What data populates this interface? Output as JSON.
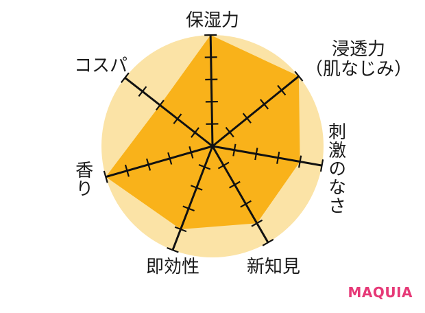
{
  "chart_data": {
    "type": "radar",
    "axes": [
      "保湿力",
      "浸透力\n（肌なじみ）",
      "刺激のなさ",
      "新知見",
      "即効性",
      "香り",
      "コスパ"
    ],
    "series": [
      {
        "values": [
          5,
          5,
          4,
          4,
          4,
          5,
          3
        ]
      }
    ],
    "scale_max": 5,
    "ticks": [
      1,
      2,
      3,
      4,
      5
    ],
    "colors": {
      "background_circle": "#FBE3A6",
      "polygon_fill": "#F9B21A",
      "spokes": "#111111"
    }
  },
  "branding": {
    "text": "MAQUIA",
    "color": "#E63977"
  }
}
